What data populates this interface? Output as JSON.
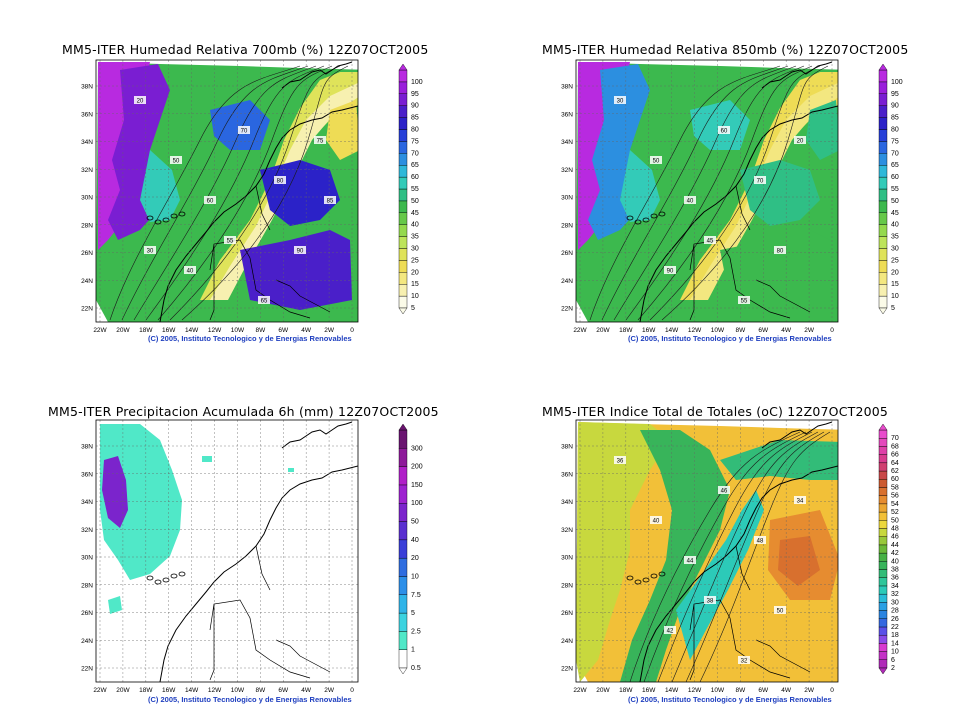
{
  "panels": [
    {
      "id": "p1",
      "title": "MM5-ITER Humedad Relativa 700mb (%) 12Z07OCT2005",
      "credit": "(C) 2005, Instituto Tecnologico y de Energias Renovables",
      "legend": [
        "5",
        "10",
        "15",
        "20",
        "25",
        "30",
        "35",
        "40",
        "45",
        "50",
        "55",
        "60",
        "65",
        "70",
        "75",
        "80",
        "85",
        "90",
        "95",
        "100"
      ],
      "legend_colors": [
        "#fbfbe8",
        "#f7f0b0",
        "#f3e780",
        "#eedc55",
        "#dfe35a",
        "#bde45a",
        "#94d94e",
        "#66c84a",
        "#3cb94e",
        "#2fbf85",
        "#33cbb8",
        "#2fb8d9",
        "#2c8fe0",
        "#2a66e0",
        "#263fd8",
        "#2b22c8",
        "#4a1fc9",
        "#7a1ed2",
        "#9a1fdb",
        "#b82ae0"
      ],
      "tag_values": [
        "20",
        "50",
        "60",
        "70",
        "80",
        "90",
        "40",
        "75",
        "55",
        "65",
        "30",
        "85"
      ]
    },
    {
      "id": "p2",
      "title": "MM5-ITER Humedad Relativa 850mb (%) 12Z07OCT2005",
      "credit": "(C) 2005, Instituto Tecnologico y de Energias Renovables",
      "legend": [
        "5",
        "10",
        "15",
        "20",
        "25",
        "30",
        "35",
        "40",
        "45",
        "50",
        "55",
        "60",
        "65",
        "70",
        "75",
        "80",
        "85",
        "90",
        "95",
        "100"
      ],
      "legend_colors": [
        "#fbfbe8",
        "#f7f0b0",
        "#f3e780",
        "#eedc55",
        "#dfe35a",
        "#bde45a",
        "#94d94e",
        "#66c84a",
        "#3cb94e",
        "#2fbf85",
        "#33cbb8",
        "#2fb8d9",
        "#2c8fe0",
        "#2a66e0",
        "#263fd8",
        "#2b22c8",
        "#4a1fc9",
        "#7a1ed2",
        "#9a1fdb",
        "#b82ae0"
      ],
      "tag_values": [
        "30",
        "50",
        "40",
        "60",
        "70",
        "80",
        "90",
        "20",
        "45",
        "55"
      ]
    },
    {
      "id": "p3",
      "title": "MM5-ITER Precipitacion Acumulada 6h (mm) 12Z07OCT2005",
      "credit": "(C) 2005, Instituto Tecnologico y de Energias Renovables",
      "legend": [
        "0.5",
        "1",
        "2.5",
        "5",
        "7.5",
        "10",
        "20",
        "40",
        "50",
        "100",
        "150",
        "200",
        "300"
      ],
      "legend_colors": [
        "#ffffff",
        "#50e8c8",
        "#3cd3e0",
        "#30b4e8",
        "#2d8fe8",
        "#2f6de0",
        "#3a3fd8",
        "#5a2fd0",
        "#7b24cc",
        "#9e22d0",
        "#b020c8",
        "#8e1a9a",
        "#6a1470"
      ],
      "tag_values": []
    },
    {
      "id": "p4",
      "title": "MM5-ITER Indice Total de Totales (oC) 12Z07OCT2005",
      "credit": "(C) 2005, Instituto Tecnologico y de Energias Renovables",
      "legend": [
        "2",
        "6",
        "10",
        "14",
        "18",
        "22",
        "26",
        "28",
        "30",
        "32",
        "34",
        "36",
        "38",
        "40",
        "42",
        "44",
        "46",
        "48",
        "50",
        "52",
        "54",
        "56",
        "58",
        "60",
        "62",
        "64",
        "66",
        "68",
        "70"
      ],
      "legend_colors": [
        "#b02ab8",
        "#c432c6",
        "#d83ad0",
        "#8a4ae8",
        "#5a50e8",
        "#3468e0",
        "#2a84e0",
        "#2aa0e4",
        "#2abcd8",
        "#2ccab8",
        "#2ec69a",
        "#32bc78",
        "#38b45a",
        "#46b044",
        "#6ab838",
        "#98c83a",
        "#c8d83e",
        "#ecd83c",
        "#f2c038",
        "#eca632",
        "#e68c30",
        "#d8702e",
        "#cc5a30",
        "#c84848",
        "#d04070",
        "#d83c8e",
        "#de40a8",
        "#e448bc",
        "#e84ccc"
      ],
      "tag_values": [
        "36",
        "40",
        "44",
        "46",
        "48",
        "50",
        "42",
        "34",
        "38",
        "32"
      ]
    }
  ],
  "axes": {
    "x_ticks": [
      "22W",
      "20W",
      "18W",
      "16W",
      "14W",
      "12W",
      "10W",
      "8W",
      "6W",
      "4W",
      "2W",
      "0"
    ],
    "y_ticks": [
      "38N",
      "36N",
      "34N",
      "32N",
      "30N",
      "28N",
      "26N",
      "24N",
      "22N"
    ]
  }
}
